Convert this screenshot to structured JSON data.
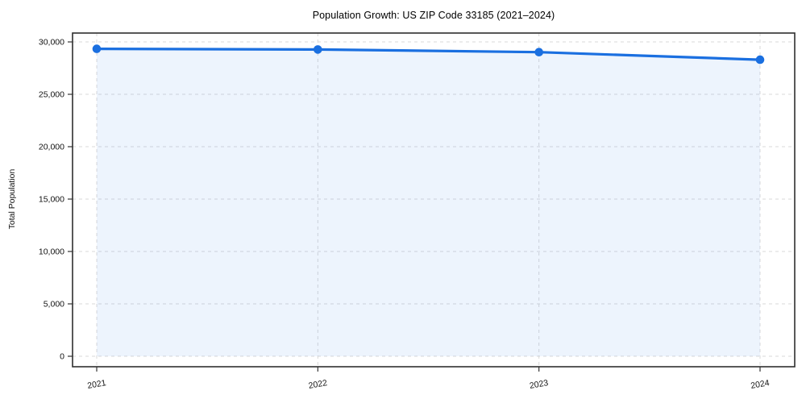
{
  "chart_data": {
    "type": "area",
    "title": "Population Growth: US ZIP Code 33185 (2021–2024)",
    "xlabel": "",
    "ylabel": "Total Population",
    "series_name": "Total Population",
    "x": [
      2021,
      2022,
      2023,
      2024
    ],
    "x_tick_labels": [
      "2021",
      "2022",
      "2023",
      "2024"
    ],
    "values": [
      29340,
      29280,
      29020,
      28300
    ],
    "y_ticks": [
      {
        "value": 0,
        "label": "0"
      },
      {
        "value": 5000,
        "label": "5,000"
      },
      {
        "value": 10000,
        "label": "10,000"
      },
      {
        "value": 15000,
        "label": "15,000"
      },
      {
        "value": 20000,
        "label": "20,000"
      },
      {
        "value": 25000,
        "label": "25,000"
      },
      {
        "value": 30000,
        "label": "30,000"
      }
    ],
    "ylim": [
      -1000,
      30850
    ],
    "grid": true,
    "grid_style": "dashed",
    "legend": "none",
    "marker": "circle",
    "colors": {
      "line": "#1a6fe0",
      "marker": "#1a6fe0",
      "fill": "rgba(26,111,224,0.08)",
      "grid": "#d9d9d9",
      "spine": "#2e2e2e",
      "tick": "#333333",
      "text": "#111111",
      "background": "#ffffff"
    }
  }
}
